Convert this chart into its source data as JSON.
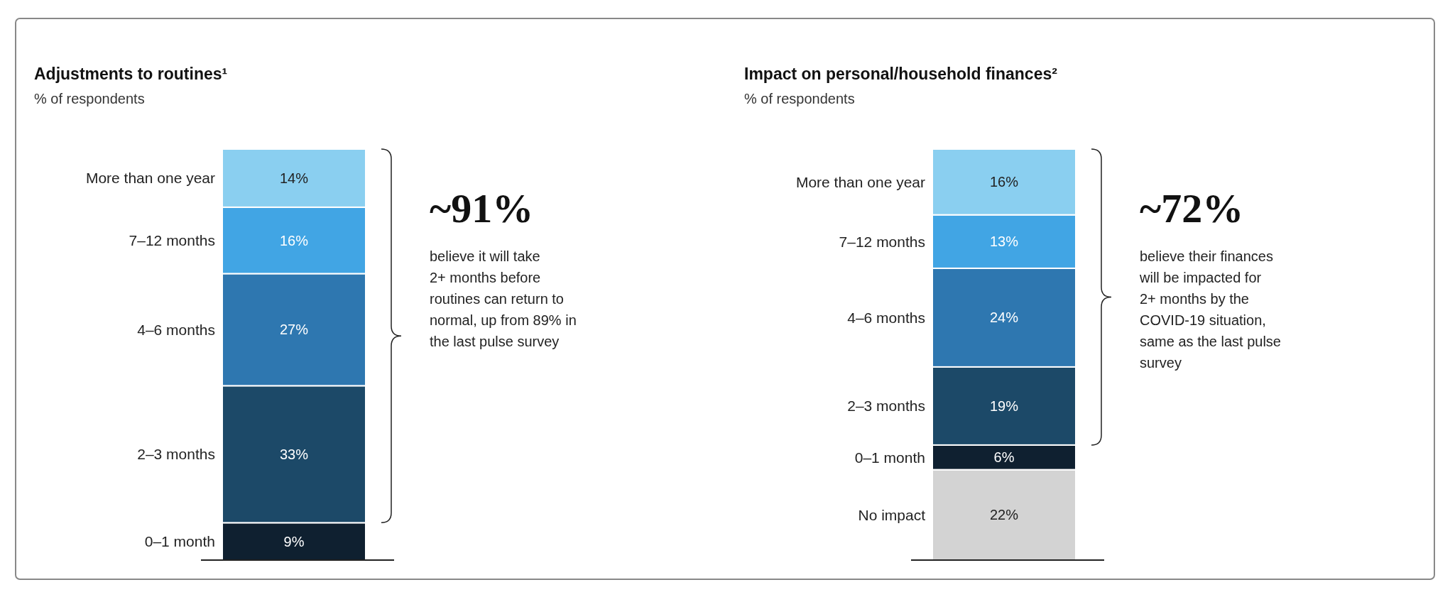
{
  "chart_data": [
    {
      "type": "bar",
      "stacked": true,
      "title": "Adjustments to routines¹",
      "subtitle": "% of respondents",
      "categories": [
        null
      ],
      "legend": false,
      "series": [
        {
          "name": "0–1 month",
          "color": "#0f2030",
          "values": [
            9
          ],
          "value_labels": [
            "9%"
          ]
        },
        {
          "name": "2–3 months",
          "color": "#1c4968",
          "values": [
            33
          ],
          "value_labels": [
            "33%"
          ]
        },
        {
          "name": "4–6 months",
          "color": "#2e77b0",
          "values": [
            27
          ],
          "value_labels": [
            "27%"
          ]
        },
        {
          "name": "7–12 months",
          "color": "#41a5e4",
          "values": [
            16
          ],
          "value_labels": [
            "16%"
          ]
        },
        {
          "name": "More than one year",
          "color": "#8acff0",
          "values": [
            14
          ],
          "value_labels": [
            "14%"
          ]
        }
      ],
      "annotations": [
        "~91%",
        "believe it will take 2+ months before routines can return to normal, up from 89% in the last pulse survey"
      ]
    },
    {
      "type": "bar",
      "stacked": true,
      "title": "Impact on personal/household finances²",
      "subtitle": "% of respondents",
      "categories": [
        null
      ],
      "legend": false,
      "series": [
        {
          "name": "No impact",
          "color": "#d3d3d3",
          "values": [
            22
          ],
          "value_labels": [
            "22%"
          ]
        },
        {
          "name": "0–1 month",
          "color": "#0f2030",
          "values": [
            6
          ],
          "value_labels": [
            "6%"
          ]
        },
        {
          "name": "2–3 months",
          "color": "#1c4968",
          "values": [
            19
          ],
          "value_labels": [
            "19%"
          ]
        },
        {
          "name": "4–6 months",
          "color": "#2e77b0",
          "values": [
            24
          ],
          "value_labels": [
            "24%"
          ]
        },
        {
          "name": "7–12 months",
          "color": "#41a5e4",
          "values": [
            13
          ],
          "value_labels": [
            "13%"
          ]
        },
        {
          "name": "More than one year",
          "color": "#8acff0",
          "values": [
            16
          ],
          "value_labels": [
            "16%"
          ]
        }
      ],
      "annotations": [
        "~72%",
        "believe their finances will be impacted for 2+ months by the COVID-19 situation, same as the last pulse survey"
      ]
    }
  ]
}
